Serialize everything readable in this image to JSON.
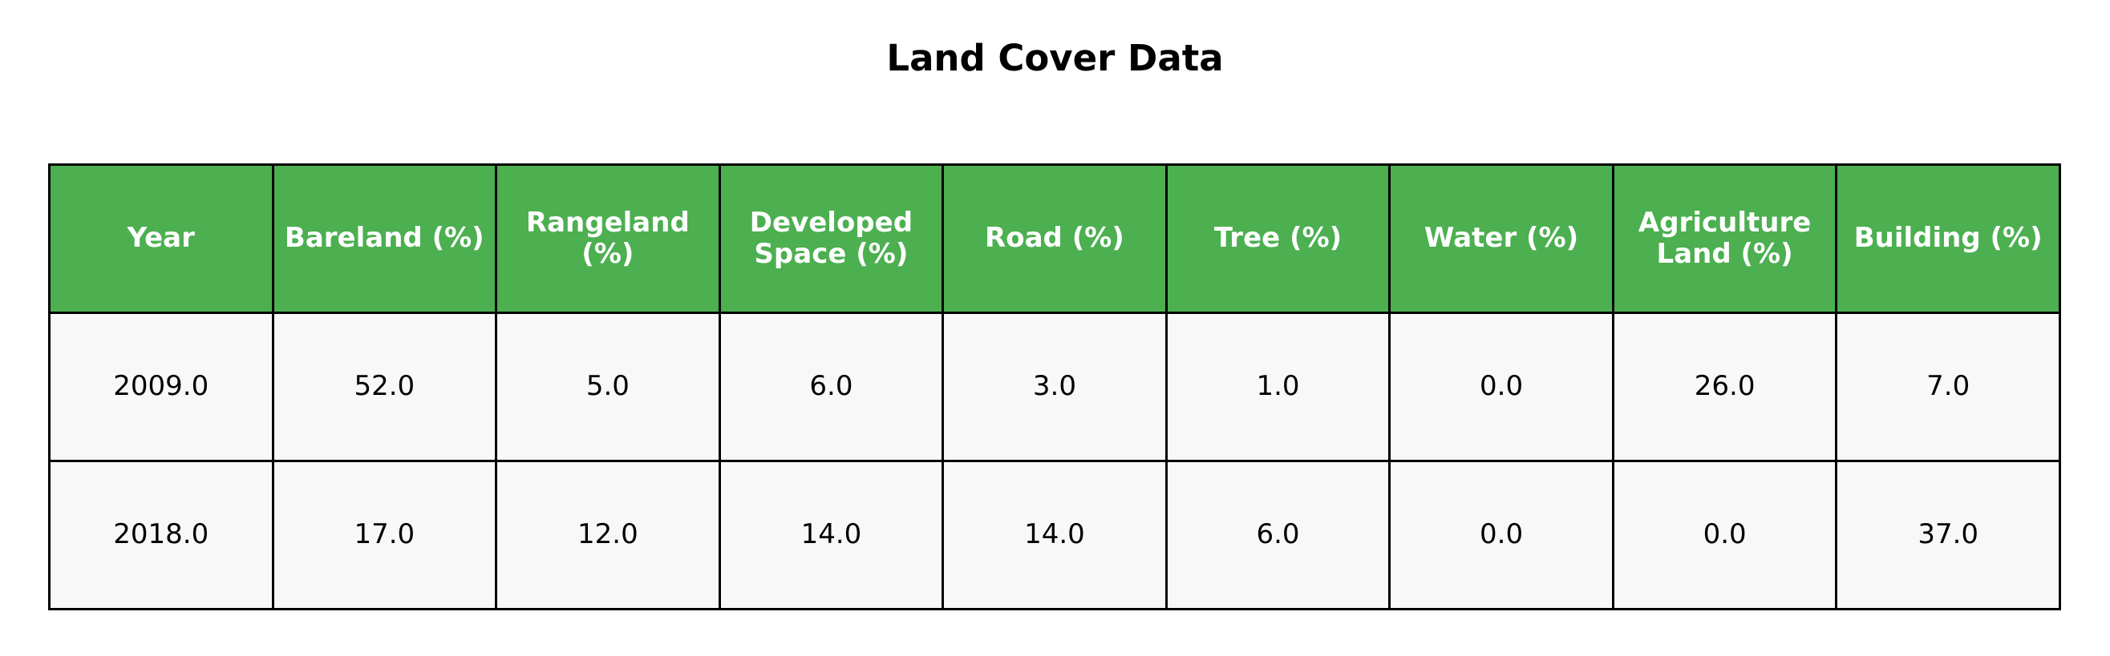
{
  "chart_data": {
    "type": "table",
    "title": "Land Cover Data",
    "columns": [
      "Year",
      "Bareland (%)",
      "Rangeland (%)",
      "Developed Space (%)",
      "Road (%)",
      "Tree (%)",
      "Water (%)",
      "Agriculture Land (%)",
      "Building (%)"
    ],
    "rows": [
      [
        "2009.0",
        "52.0",
        "5.0",
        "6.0",
        "3.0",
        "1.0",
        "0.0",
        "26.0",
        "7.0"
      ],
      [
        "2018.0",
        "17.0",
        "12.0",
        "14.0",
        "14.0",
        "6.0",
        "0.0",
        "0.0",
        "37.0"
      ]
    ],
    "colors": {
      "header_bg": "#4caf50",
      "header_text": "#ffffff",
      "cell_bg": "#f8f8f8",
      "border": "#000000"
    }
  }
}
